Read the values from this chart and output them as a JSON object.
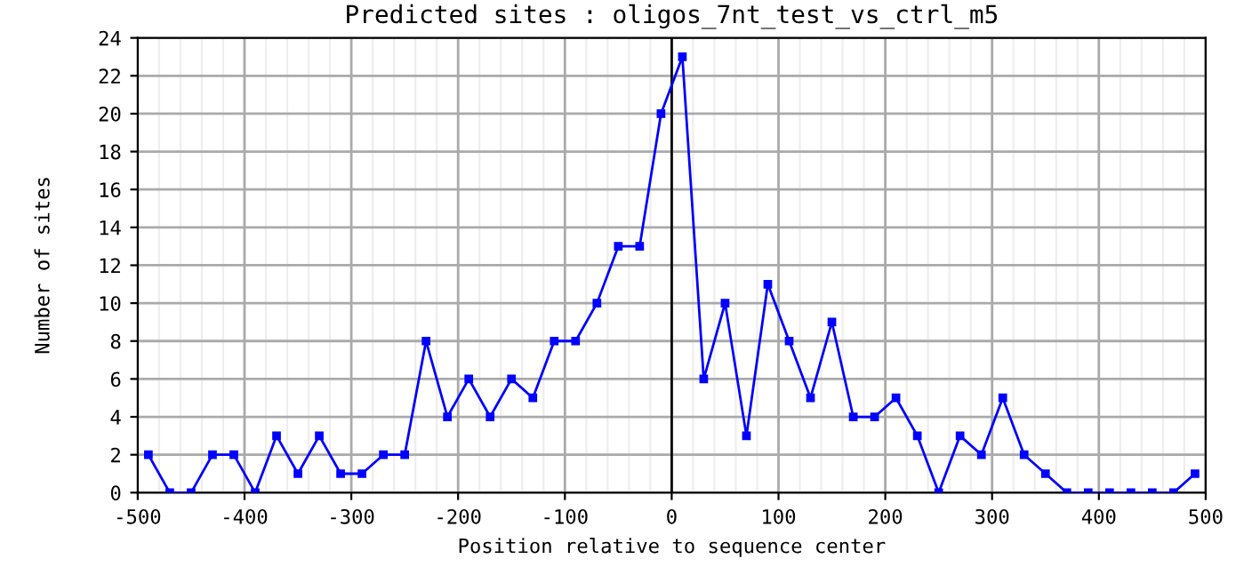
{
  "chart_data": {
    "type": "line",
    "title": "Predicted sites : oligos_7nt_test_vs_ctrl_m5",
    "xlabel": "Position relative to sequence center",
    "ylabel": "Number of sites",
    "x": [
      -490,
      -470,
      -450,
      -430,
      -410,
      -390,
      -370,
      -350,
      -330,
      -310,
      -290,
      -270,
      -250,
      -230,
      -210,
      -190,
      -170,
      -150,
      -130,
      -110,
      -90,
      -70,
      -50,
      -30,
      -10,
      10,
      30,
      50,
      70,
      90,
      110,
      130,
      150,
      170,
      190,
      210,
      230,
      250,
      270,
      290,
      310,
      330,
      350,
      370,
      390,
      410,
      430,
      450,
      470,
      490
    ],
    "series": [
      {
        "color": "#0000ff",
        "values": [
          2,
          0,
          0,
          2,
          2,
          0,
          3,
          1,
          3,
          1,
          1,
          2,
          2,
          8,
          4,
          6,
          4,
          6,
          5,
          8,
          8,
          10,
          13,
          13,
          20,
          23,
          6,
          10,
          3,
          11,
          8,
          5,
          9,
          4,
          4,
          5,
          3,
          0,
          3,
          2,
          5,
          2,
          1,
          0,
          0,
          0,
          0,
          0,
          0,
          1
        ]
      }
    ],
    "xlim": [
      -500,
      500
    ],
    "xticks": [
      -500,
      -400,
      -300,
      -200,
      -100,
      0,
      100,
      200,
      300,
      400,
      500
    ],
    "ylim": [
      0,
      24
    ],
    "yticks": [
      0,
      2,
      4,
      6,
      8,
      10,
      12,
      14,
      16,
      18,
      20,
      22,
      24
    ],
    "ref_lines": [
      {
        "axis": "x",
        "value": 0,
        "color": "#000000"
      }
    ],
    "grid": true,
    "marker": "square",
    "line_style": "solid"
  }
}
